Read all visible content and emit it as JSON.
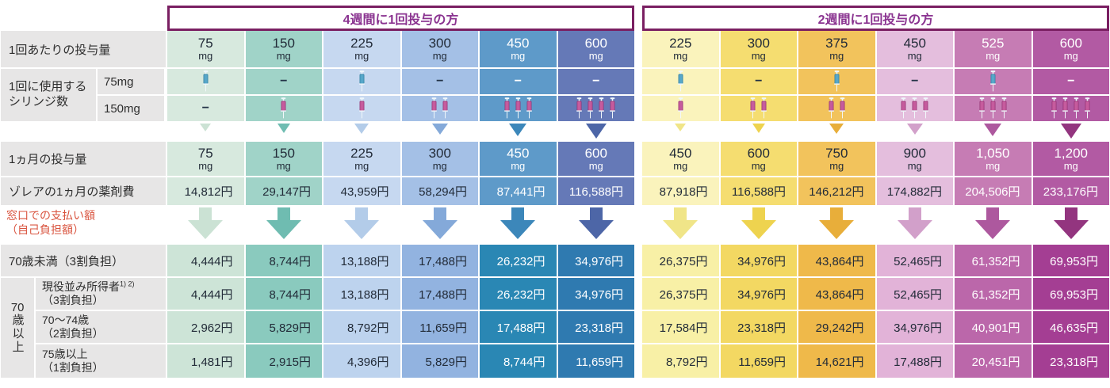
{
  "labels": {
    "unit": "mg",
    "per_dose": "1回あたりの投与量",
    "syringes_1": "1回に使用する",
    "syringes_2": "シリンジ数",
    "syr75": "75mg",
    "syr150": "150mg",
    "monthly": "1ヵ月の投与量",
    "cost": "ゾレアの1ヵ月の薬剤費",
    "pay_1": "窓口での支払い額",
    "pay_2": "（自己負担額）",
    "age_u70": "70歳未満（3割負担）",
    "vert_num": "70",
    "vert_rest": "歳以上",
    "active_1": "現役並み所得者",
    "active_sup": "1) 2)",
    "active_2": "（3割負担）",
    "a7074_1": "70～74歳",
    "a7074_2": "（2割負担）",
    "a75_1": "75歳以上",
    "a75_2": "（1割負担）"
  },
  "groups": [
    {
      "title": "4週間に1回投与の方",
      "columns": [
        {
          "dose": "75",
          "syr75": 1,
          "syr150": 0,
          "monthly": "75",
          "cost": "14,812円",
          "pays": [
            "4,444円",
            "4,444円",
            "2,962円",
            "1,481円"
          ]
        },
        {
          "dose": "150",
          "syr75": 0,
          "syr150": 1,
          "monthly": "150",
          "cost": "29,147円",
          "pays": [
            "8,744円",
            "8,744円",
            "5,829円",
            "2,915円"
          ]
        },
        {
          "dose": "225",
          "syr75": 1,
          "syr150": 1,
          "monthly": "225",
          "cost": "43,959円",
          "pays": [
            "13,188円",
            "13,188円",
            "8,792円",
            "4,396円"
          ]
        },
        {
          "dose": "300",
          "syr75": 0,
          "syr150": 2,
          "monthly": "300",
          "cost": "58,294円",
          "pays": [
            "17,488円",
            "17,488円",
            "11,659円",
            "5,829円"
          ]
        },
        {
          "dose": "450",
          "syr75": 0,
          "syr150": 3,
          "monthly": "450",
          "cost": "87,441円",
          "pays": [
            "26,232円",
            "26,232円",
            "17,488円",
            "8,744円"
          ]
        },
        {
          "dose": "600",
          "syr75": 0,
          "syr150": 4,
          "monthly": "600",
          "cost": "116,588円",
          "pays": [
            "34,976円",
            "34,976円",
            "23,318円",
            "11,659円"
          ]
        }
      ]
    },
    {
      "title": "2週間に1回投与の方",
      "columns": [
        {
          "dose": "225",
          "syr75": 1,
          "syr150": 1,
          "monthly": "450",
          "cost": "87,918円",
          "pays": [
            "26,375円",
            "26,375円",
            "17,584円",
            "8,792円"
          ]
        },
        {
          "dose": "300",
          "syr75": 0,
          "syr150": 2,
          "monthly": "600",
          "cost": "116,588円",
          "pays": [
            "34,976円",
            "34,976円",
            "23,318円",
            "11,659円"
          ]
        },
        {
          "dose": "375",
          "syr75": 1,
          "syr150": 2,
          "monthly": "750",
          "cost": "146,212円",
          "pays": [
            "43,864円",
            "43,864円",
            "29,242円",
            "14,621円"
          ]
        },
        {
          "dose": "450",
          "syr75": 0,
          "syr150": 3,
          "monthly": "900",
          "cost": "174,882円",
          "pays": [
            "52,465円",
            "52,465円",
            "34,976円",
            "17,488円"
          ]
        },
        {
          "dose": "525",
          "syr75": 1,
          "syr150": 3,
          "monthly": "1,050",
          "cost": "204,506円",
          "pays": [
            "61,352円",
            "61,352円",
            "40,901円",
            "20,451円"
          ]
        },
        {
          "dose": "600",
          "syr75": 0,
          "syr150": 4,
          "monthly": "1,200",
          "cost": "233,176円",
          "pays": [
            "69,953円",
            "69,953円",
            "46,635円",
            "23,318円"
          ]
        }
      ]
    }
  ],
  "palette": {
    "header_border": "#7a1f62",
    "header_text": "#8a3390",
    "label_bg": "#e7e6e6",
    "pay_label_color": "#d9543f",
    "dark_text": "#222b38",
    "syringe_blue": "#57a7c9",
    "syringe_pink": "#c65b9d",
    "columns": [
      {
        "base": "#d7e9de",
        "deep": "#cde4d7",
        "arrow": "#cbe2d4",
        "text": "dark"
      },
      {
        "base": "#a0d3c8",
        "deep": "#8acabe",
        "arrow": "#6fbcb1",
        "text": "dark"
      },
      {
        "base": "#c6d8f0",
        "deep": "#bdd3ee",
        "arrow": "#b3cce9",
        "text": "dark"
      },
      {
        "base": "#a4c0e6",
        "deep": "#92b3e0",
        "arrow": "#84a9d9",
        "text": "dark"
      },
      {
        "base": "#5e9ac9",
        "deep": "#2a87b4",
        "arrow": "#3c87ba",
        "text": "light"
      },
      {
        "base": "#6579b7",
        "deep": "#2f7ab0",
        "arrow": "#4d66a7",
        "text": "light"
      },
      {
        "base": "#faf3bc",
        "deep": "#f8f0a6",
        "arrow": "#f0e588",
        "text": "dark"
      },
      {
        "base": "#f5dd70",
        "deep": "#f3d862",
        "arrow": "#eed34f",
        "text": "dark"
      },
      {
        "base": "#f2c35c",
        "deep": "#efb94a",
        "arrow": "#e8ae3a",
        "text": "dark"
      },
      {
        "base": "#e4bedd",
        "deep": "#e2b3d8",
        "arrow": "#d2a0ca",
        "text": "dark"
      },
      {
        "base": "#c67cb4",
        "deep": "#bb67aa",
        "arrow": "#ad589e",
        "text": "light"
      },
      {
        "base": "#b25aa3",
        "deep": "#a43e93",
        "arrow": "#93357f",
        "text": "light"
      }
    ]
  }
}
